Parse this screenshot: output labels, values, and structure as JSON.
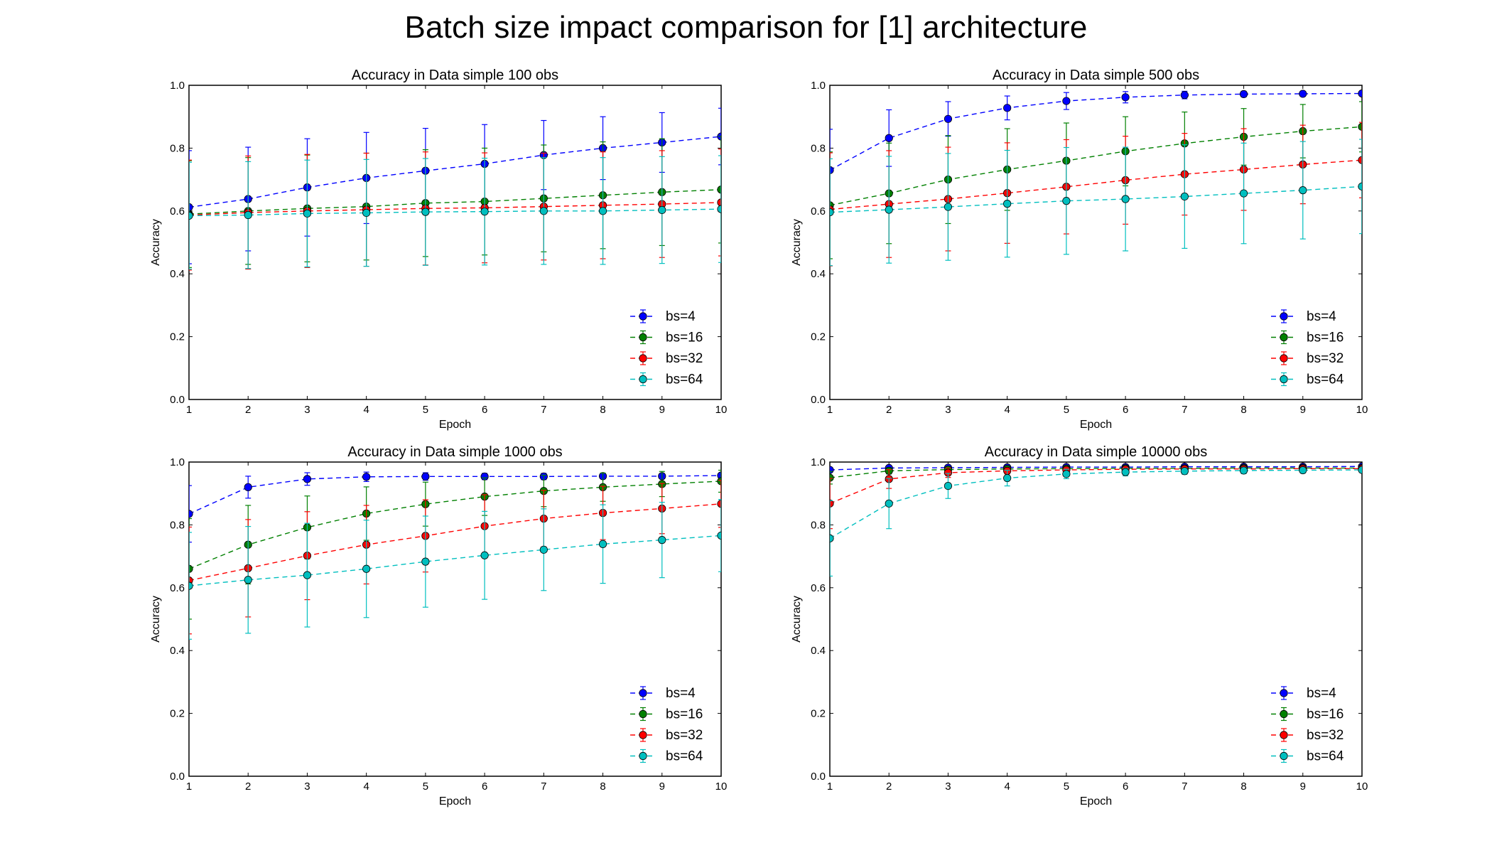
{
  "figure": {
    "suptitle": "Batch size impact comparison for [1] architecture",
    "colors": {
      "bs=4": "#0000ff",
      "bs=16": "#008000",
      "bs=32": "#ff0000",
      "bs=64": "#00bfbf"
    }
  },
  "chart_data": [
    {
      "type": "line",
      "title": "Accuracy in Data simple 100 obs",
      "xlabel": "Epoch",
      "ylabel": "Accuracy",
      "xlim": [
        1,
        10
      ],
      "ylim": [
        0.0,
        1.0
      ],
      "xticks": [
        1,
        2,
        3,
        4,
        5,
        6,
        7,
        8,
        9,
        10
      ],
      "yticks": [
        "0.0",
        "0.2",
        "0.4",
        "0.6",
        "0.8",
        "1.0"
      ],
      "grid": false,
      "legend_position": "lower-right",
      "error_bars": true,
      "x": [
        1,
        2,
        3,
        4,
        5,
        6,
        7,
        8,
        9,
        10
      ],
      "series": [
        {
          "name": "bs=4",
          "values": [
            0.612,
            0.638,
            0.675,
            0.705,
            0.728,
            0.75,
            0.778,
            0.8,
            0.818,
            0.837
          ],
          "errors": [
            0.18,
            0.165,
            0.155,
            0.145,
            0.135,
            0.125,
            0.11,
            0.1,
            0.095,
            0.09
          ]
        },
        {
          "name": "bs=16",
          "values": [
            0.59,
            0.6,
            0.608,
            0.614,
            0.625,
            0.63,
            0.64,
            0.65,
            0.66,
            0.668
          ],
          "errors": [
            0.17,
            0.17,
            0.17,
            0.17,
            0.17,
            0.17,
            0.17,
            0.17,
            0.17,
            0.17
          ]
        },
        {
          "name": "bs=32",
          "values": [
            0.587,
            0.595,
            0.6,
            0.604,
            0.608,
            0.61,
            0.614,
            0.618,
            0.622,
            0.627
          ],
          "errors": [
            0.175,
            0.18,
            0.18,
            0.18,
            0.18,
            0.175,
            0.17,
            0.17,
            0.17,
            0.17
          ]
        },
        {
          "name": "bs=64",
          "values": [
            0.585,
            0.587,
            0.592,
            0.594,
            0.597,
            0.598,
            0.6,
            0.6,
            0.603,
            0.606
          ],
          "errors": [
            0.17,
            0.17,
            0.17,
            0.17,
            0.17,
            0.17,
            0.17,
            0.17,
            0.17,
            0.17
          ]
        }
      ]
    },
    {
      "type": "line",
      "title": "Accuracy in Data simple 500 obs",
      "xlabel": "Epoch",
      "ylabel": "Accuracy",
      "xlim": [
        1,
        10
      ],
      "ylim": [
        0.0,
        1.0
      ],
      "xticks": [
        1,
        2,
        3,
        4,
        5,
        6,
        7,
        8,
        9,
        10
      ],
      "yticks": [
        "0.0",
        "0.2",
        "0.4",
        "0.6",
        "0.8",
        "1.0"
      ],
      "grid": false,
      "legend_position": "lower-right",
      "error_bars": true,
      "x": [
        1,
        2,
        3,
        4,
        5,
        6,
        7,
        8,
        9,
        10
      ],
      "series": [
        {
          "name": "bs=4",
          "values": [
            0.73,
            0.832,
            0.893,
            0.928,
            0.95,
            0.962,
            0.969,
            0.972,
            0.973,
            0.974
          ],
          "errors": [
            0.13,
            0.09,
            0.055,
            0.038,
            0.027,
            0.018,
            0.012,
            0.009,
            0.007,
            0.006
          ]
        },
        {
          "name": "bs=16",
          "values": [
            0.618,
            0.656,
            0.7,
            0.732,
            0.76,
            0.79,
            0.815,
            0.836,
            0.854,
            0.868
          ],
          "errors": [
            0.17,
            0.16,
            0.14,
            0.13,
            0.12,
            0.11,
            0.1,
            0.09,
            0.085,
            0.08
          ]
        },
        {
          "name": "bs=32",
          "values": [
            0.605,
            0.622,
            0.638,
            0.657,
            0.677,
            0.698,
            0.717,
            0.732,
            0.748,
            0.762
          ],
          "errors": [
            0.18,
            0.17,
            0.165,
            0.16,
            0.15,
            0.14,
            0.13,
            0.13,
            0.125,
            0.12
          ]
        },
        {
          "name": "bs=64",
          "values": [
            0.596,
            0.604,
            0.613,
            0.623,
            0.632,
            0.638,
            0.646,
            0.656,
            0.666,
            0.678
          ],
          "errors": [
            0.17,
            0.17,
            0.17,
            0.17,
            0.17,
            0.165,
            0.165,
            0.16,
            0.155,
            0.15
          ]
        }
      ]
    },
    {
      "type": "line",
      "title": "Accuracy in Data simple 1000 obs",
      "xlabel": "Epoch",
      "ylabel": "Accuracy",
      "xlim": [
        1,
        10
      ],
      "ylim": [
        0.0,
        1.0
      ],
      "xticks": [
        1,
        2,
        3,
        4,
        5,
        6,
        7,
        8,
        9,
        10
      ],
      "yticks": [
        "0.0",
        "0.2",
        "0.4",
        "0.6",
        "0.8",
        "1.0"
      ],
      "grid": false,
      "legend_position": "lower-right",
      "error_bars": true,
      "x": [
        1,
        2,
        3,
        4,
        5,
        6,
        7,
        8,
        9,
        10
      ],
      "series": [
        {
          "name": "bs=4",
          "values": [
            0.835,
            0.92,
            0.946,
            0.953,
            0.954,
            0.954,
            0.954,
            0.955,
            0.955,
            0.957
          ],
          "errors": [
            0.09,
            0.035,
            0.02,
            0.015,
            0.012,
            0.01,
            0.01,
            0.008,
            0.008,
            0.007
          ]
        },
        {
          "name": "bs=16",
          "values": [
            0.66,
            0.737,
            0.792,
            0.836,
            0.866,
            0.89,
            0.908,
            0.92,
            0.93,
            0.939
          ],
          "errors": [
            0.16,
            0.125,
            0.1,
            0.085,
            0.07,
            0.06,
            0.05,
            0.045,
            0.04,
            0.035
          ]
        },
        {
          "name": "bs=32",
          "values": [
            0.623,
            0.662,
            0.702,
            0.737,
            0.765,
            0.796,
            0.82,
            0.838,
            0.852,
            0.867
          ],
          "errors": [
            0.17,
            0.155,
            0.14,
            0.125,
            0.115,
            0.1,
            0.09,
            0.085,
            0.08,
            0.075
          ]
        },
        {
          "name": "bs=64",
          "values": [
            0.606,
            0.625,
            0.64,
            0.66,
            0.683,
            0.703,
            0.721,
            0.739,
            0.752,
            0.766
          ],
          "errors": [
            0.17,
            0.17,
            0.165,
            0.155,
            0.145,
            0.14,
            0.13,
            0.125,
            0.12,
            0.115
          ]
        }
      ]
    },
    {
      "type": "line",
      "title": "Accuracy in Data simple 10000 obs",
      "xlabel": "Epoch",
      "ylabel": "Accuracy",
      "xlim": [
        1,
        10
      ],
      "ylim": [
        0.0,
        1.0
      ],
      "xticks": [
        1,
        2,
        3,
        4,
        5,
        6,
        7,
        8,
        9,
        10
      ],
      "yticks": [
        "0.0",
        "0.2",
        "0.4",
        "0.6",
        "0.8",
        "1.0"
      ],
      "grid": false,
      "legend_position": "lower-right",
      "error_bars": true,
      "x": [
        1,
        2,
        3,
        4,
        5,
        6,
        7,
        8,
        9,
        10
      ],
      "series": [
        {
          "name": "bs=4",
          "values": [
            0.975,
            0.981,
            0.982,
            0.983,
            0.984,
            0.984,
            0.985,
            0.985,
            0.985,
            0.986
          ],
          "errors": [
            0.006,
            0.004,
            0.003,
            0.003,
            0.002,
            0.002,
            0.002,
            0.002,
            0.002,
            0.002
          ]
        },
        {
          "name": "bs=16",
          "values": [
            0.95,
            0.972,
            0.976,
            0.978,
            0.979,
            0.98,
            0.98,
            0.981,
            0.981,
            0.981
          ],
          "errors": [
            0.02,
            0.01,
            0.007,
            0.006,
            0.005,
            0.005,
            0.004,
            0.004,
            0.004,
            0.004
          ]
        },
        {
          "name": "bs=32",
          "values": [
            0.868,
            0.946,
            0.966,
            0.972,
            0.975,
            0.977,
            0.978,
            0.978,
            0.979,
            0.979
          ],
          "errors": [
            0.08,
            0.03,
            0.015,
            0.01,
            0.008,
            0.007,
            0.006,
            0.006,
            0.005,
            0.005
          ]
        },
        {
          "name": "bs=64",
          "values": [
            0.757,
            0.868,
            0.924,
            0.949,
            0.962,
            0.968,
            0.971,
            0.973,
            0.974,
            0.975
          ],
          "errors": [
            0.12,
            0.08,
            0.04,
            0.025,
            0.015,
            0.012,
            0.01,
            0.01,
            0.009,
            0.008
          ]
        }
      ]
    }
  ]
}
